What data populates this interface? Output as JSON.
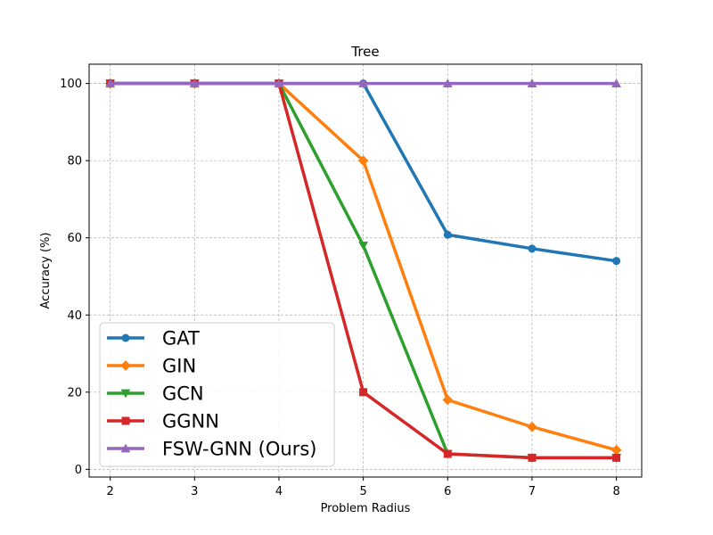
{
  "chart_data": {
    "type": "line",
    "title": "Tree",
    "xlabel": "Problem Radius",
    "ylabel": "Accuracy (%)",
    "x": [
      2,
      3,
      4,
      5,
      6,
      7,
      8
    ],
    "xlim": [
      1.75,
      8.3
    ],
    "ylim": [
      -2,
      105
    ],
    "xticks": [
      "2",
      "3",
      "4",
      "5",
      "6",
      "7",
      "8"
    ],
    "yticks": [
      "0",
      "20",
      "40",
      "60",
      "80",
      "100"
    ],
    "grid": true,
    "legend_position": "lower-left",
    "series": [
      {
        "name": "GAT",
        "color": "#1f77b4",
        "marker": "circle",
        "values": [
          100,
          100,
          100,
          100,
          60.8,
          57.2,
          54
        ]
      },
      {
        "name": "GIN",
        "color": "#ff7f0e",
        "marker": "diamond",
        "values": [
          100,
          100,
          100,
          80,
          18,
          11,
          5
        ]
      },
      {
        "name": "GCN",
        "color": "#2ca02c",
        "marker": "triangle-down",
        "values": [
          100,
          100,
          100,
          58,
          4,
          3,
          3
        ]
      },
      {
        "name": "GGNN",
        "color": "#d62728",
        "marker": "square",
        "values": [
          100,
          100,
          100,
          20,
          4,
          3,
          3
        ]
      },
      {
        "name": "FSW-GNN (Ours)",
        "color": "#9467bd",
        "marker": "triangle-up",
        "values": [
          100,
          100,
          100,
          100,
          100,
          100,
          100
        ]
      }
    ]
  }
}
